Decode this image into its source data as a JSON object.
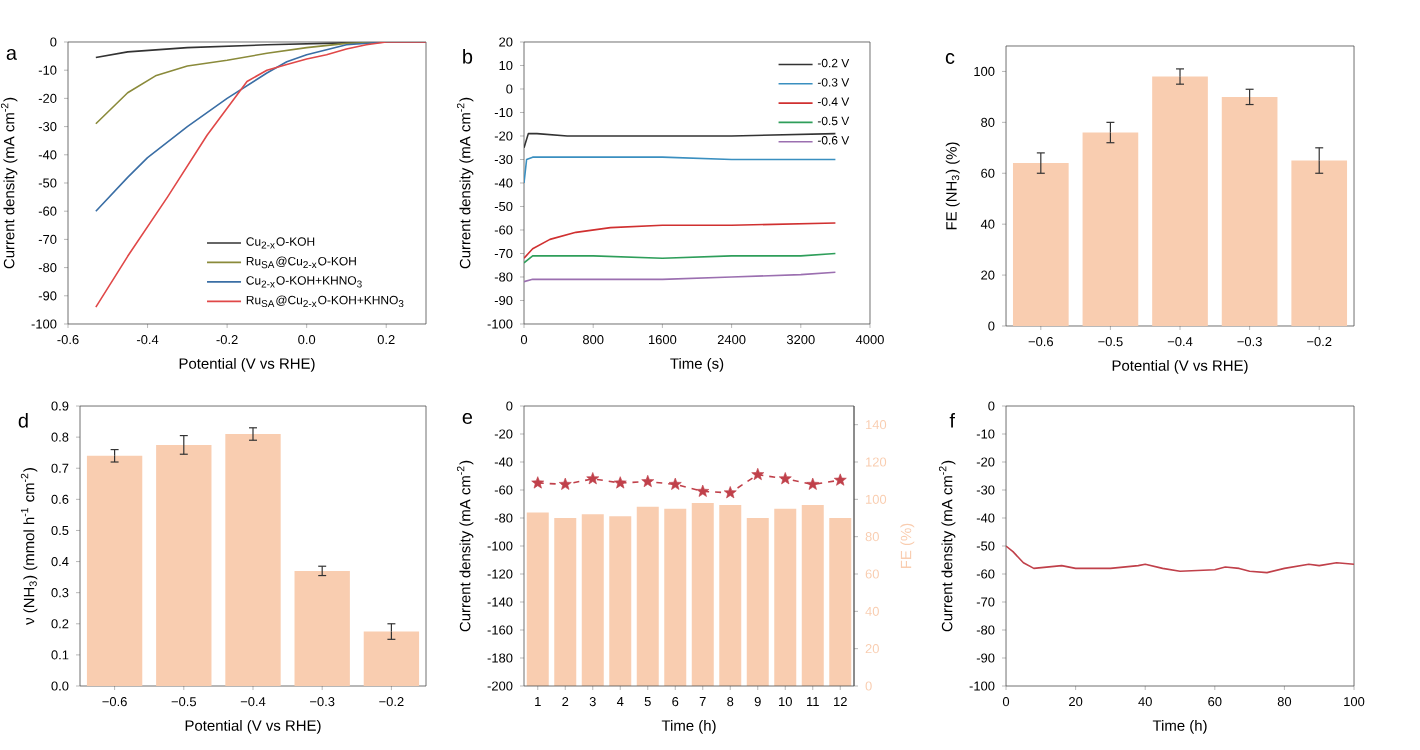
{
  "chart_data": [
    {
      "type": "line",
      "annotations": [
        "a"
      ],
      "xlabel": "Potential (V vs RHE)",
      "ylabel": "Current density (mA cm$^{-2}$)",
      "xlim": [
        -0.6,
        0.3
      ],
      "xticks": [
        -0.6,
        -0.4,
        -0.2,
        {
          "value": 0,
          "label": "0.0"
        },
        0.2
      ],
      "ylim": [
        -100,
        0
      ],
      "yticks": [
        -100,
        -90,
        -80,
        -70,
        -60,
        -50,
        -40,
        -30,
        -20,
        -10,
        0
      ],
      "legend": "bottom right",
      "series": [
        {
          "name": "Cu$_{2-x}$O-KOH",
          "color": "#333333",
          "x": [
            -0.53,
            -0.45,
            -0.3,
            -0.1,
            0.1,
            0.2,
            0.3
          ],
          "values": [
            -5.5,
            -3.5,
            -2,
            -1,
            -0.3,
            0,
            0
          ]
        },
        {
          "name": "Ru$_{SA}$@Cu$_{2-x}$O-KOH",
          "color": "#8a8a3a",
          "x": [
            -0.53,
            -0.45,
            -0.38,
            -0.3,
            -0.2,
            -0.1,
            0,
            0.1,
            0.2,
            0.3
          ],
          "values": [
            -29,
            -18,
            -12,
            -8.5,
            -6.5,
            -4,
            -2,
            -0.5,
            0,
            0
          ]
        },
        {
          "name": "Cu$_{2-x}$O-KOH+KHNO$_{3}$",
          "color": "#3a6ea5",
          "x": [
            -0.53,
            -0.45,
            -0.4,
            -0.3,
            -0.2,
            -0.1,
            -0.05,
            0,
            0.1,
            0.2,
            0.3
          ],
          "values": [
            -60,
            -48,
            -41,
            -30,
            -20,
            -11,
            -7,
            -4.5,
            -1,
            0,
            0
          ]
        },
        {
          "name": "Ru$_{SA}$@Cu$_{2-x}$O-KOH+KHNO$_{3}$",
          "color": "#e04848",
          "x": [
            -0.53,
            -0.45,
            -0.35,
            -0.25,
            -0.15,
            -0.1,
            -0.05,
            0,
            0.05,
            0.1,
            0.15,
            0.2,
            0.3
          ],
          "values": [
            -94,
            -76,
            -55,
            -33,
            -14,
            -10,
            -8,
            -6,
            -4.5,
            -2.5,
            -1,
            0,
            0
          ]
        }
      ]
    },
    {
      "type": "line",
      "annotations": [
        "b"
      ],
      "xlabel": "Time (s)",
      "ylabel": "Current density (mA cm$^{-2}$)",
      "xlim": [
        0,
        4000
      ],
      "xticks": [
        0,
        800,
        1600,
        2400,
        3200,
        4000
      ],
      "ylim": [
        -100,
        20
      ],
      "yticks": [
        -100,
        -90,
        -80,
        -70,
        -60,
        -50,
        -40,
        -30,
        -20,
        -10,
        0,
        10,
        20
      ],
      "legend": "top right",
      "series": [
        {
          "name": "-0.2 V",
          "color": "#333333",
          "x": [
            0,
            50,
            150,
            500,
            900,
            1600,
            2400,
            3600
          ],
          "values": [
            -25,
            -19,
            -19,
            -20,
            -20,
            -20,
            -20,
            -19
          ]
        },
        {
          "name": "-0.3 V",
          "color": "#3a8fc0",
          "x": [
            0,
            30,
            100,
            800,
            1600,
            2400,
            3600
          ],
          "values": [
            -40,
            -30,
            -29,
            -29,
            -29,
            -30,
            -30
          ]
        },
        {
          "name": "-0.4 V",
          "color": "#d03030",
          "x": [
            0,
            100,
            300,
            600,
            1000,
            1600,
            2400,
            3600
          ],
          "values": [
            -72,
            -68,
            -64,
            -61,
            -59,
            -58,
            -58,
            -57
          ]
        },
        {
          "name": "-0.5 V",
          "color": "#2e9e5a",
          "x": [
            0,
            100,
            800,
            1600,
            2400,
            3200,
            3600
          ],
          "values": [
            -74,
            -71,
            -71,
            -72,
            -71,
            -71,
            -70
          ]
        },
        {
          "name": "-0.6 V",
          "color": "#9b6fb0",
          "x": [
            0,
            100,
            800,
            1600,
            2400,
            3200,
            3600
          ],
          "values": [
            -82,
            -81,
            -81,
            -81,
            -80,
            -79,
            -78
          ]
        }
      ]
    },
    {
      "type": "bar",
      "annotations": [
        "c"
      ],
      "xlabel": "Potential (V vs RHE)",
      "ylabel": "FE (NH$_{3}$) (%)",
      "categories": [
        "−0.6",
        "−0.5",
        "−0.4",
        "−0.3",
        "−0.2"
      ],
      "ylim": [
        0,
        110
      ],
      "yticks": [
        0,
        20,
        40,
        60,
        80,
        100
      ],
      "color": "#f9cdb0",
      "values": [
        64,
        76,
        98,
        90,
        65
      ],
      "errors": [
        4,
        4,
        3,
        3,
        5
      ]
    },
    {
      "type": "bar",
      "annotations": [
        "d"
      ],
      "xlabel": "Potential (V vs RHE)",
      "ylabel": "ν (NH$_{3}$) (mmol h$^{-1}$ cm$^{-2}$)",
      "categories": [
        "−0.6",
        "−0.5",
        "−0.4",
        "−0.3",
        "−0.2"
      ],
      "ylim": [
        0,
        0.9
      ],
      "yticks": [
        {
          "value": 0,
          "label": "0.0"
        },
        0.1,
        0.2,
        0.3,
        0.4,
        0.5,
        0.6,
        0.7,
        0.8,
        0.9
      ],
      "color": "#f9cdb0",
      "values": [
        0.74,
        0.775,
        0.81,
        0.37,
        0.175
      ],
      "errors": [
        0.02,
        0.03,
        0.02,
        0.015,
        0.025
      ]
    },
    {
      "type": "bar",
      "annotations": [
        "e"
      ],
      "xlabel": "Time (h)",
      "ylabel": "Current density (mA cm$^{-2}$)",
      "y2label": "FE (%)",
      "categories": [
        "1",
        "2",
        "3",
        "4",
        "5",
        "6",
        "7",
        "8",
        "9",
        "10",
        "11",
        "12"
      ],
      "ylim": [
        -200,
        0
      ],
      "yticks": [
        -200,
        -180,
        -160,
        -140,
        -120,
        -100,
        -80,
        -60,
        -40,
        -20,
        0
      ],
      "y2lim": [
        0,
        150
      ],
      "y2ticks": [
        0,
        20,
        40,
        60,
        80,
        100,
        120,
        140
      ],
      "series": [
        {
          "type": "bar",
          "axis": "y2",
          "color": "#f9cdb0",
          "values": [
            93,
            90,
            92,
            91,
            96,
            95,
            98,
            97,
            90,
            95,
            97,
            90
          ]
        },
        {
          "type": "line",
          "axis": "y",
          "color": "#c0404a",
          "marker": "star",
          "line_style": "dashed",
          "values": [
            -55,
            -56,
            -52,
            -55,
            -54,
            -56,
            -61,
            -62,
            -49,
            -52,
            -56,
            -53
          ]
        }
      ]
    },
    {
      "type": "line",
      "annotations": [
        "f"
      ],
      "xlabel": "Time (h)",
      "ylabel": "Current density (mA cm$^{-2}$)",
      "xlim": [
        0,
        100
      ],
      "xticks": [
        0,
        20,
        40,
        60,
        80,
        100
      ],
      "ylim": [
        -100,
        0
      ],
      "yticks": [
        -100,
        -90,
        -80,
        -70,
        -60,
        -50,
        -40,
        -30,
        -20,
        -10,
        0
      ],
      "color": "#c0404a",
      "x": [
        0,
        2,
        5,
        8,
        12,
        16,
        20,
        30,
        38,
        40,
        45,
        50,
        60,
        63,
        67,
        70,
        75,
        80,
        87,
        90,
        95,
        100
      ],
      "values": [
        -50,
        -52,
        -56,
        -58,
        -57.5,
        -57,
        -58,
        -58,
        -57,
        -56.5,
        -58,
        -59,
        -58.5,
        -57.5,
        -58,
        -59,
        -59.5,
        -58,
        -56.5,
        -57,
        -56,
        -56.5
      ]
    }
  ]
}
